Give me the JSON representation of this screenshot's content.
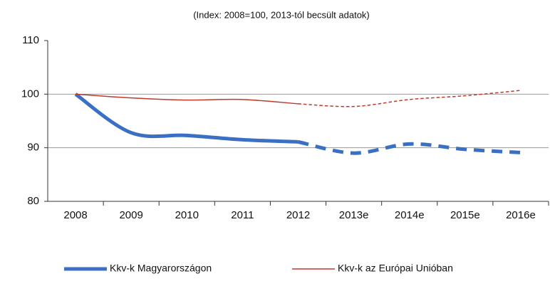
{
  "chart_data": {
    "type": "line",
    "subtitle": "(Index: 2008=100, 2013-tól becsült adatok)",
    "categories": [
      "2008",
      "2009",
      "2010",
      "2011",
      "2012",
      "2013e",
      "2014e",
      "2015e",
      "2016e"
    ],
    "series": [
      {
        "name": "Kkv-k Magyarországon",
        "color": "#3a6fc4",
        "width": 5,
        "values": [
          100,
          92.8,
          92.3,
          91.5,
          91.1,
          89.0,
          90.7,
          89.7,
          89.1
        ]
      },
      {
        "name": "Kkv-k az Európai Unióban",
        "color": "#c0392b",
        "width": 1.5,
        "values": [
          100,
          99.3,
          98.9,
          99.0,
          98.2,
          97.7,
          99.0,
          99.7,
          100.7
        ]
      }
    ],
    "dashed_from_index": 4,
    "ylim": [
      80,
      110
    ],
    "yticks": [
      80,
      90,
      100,
      110
    ],
    "grid": true,
    "legend": "bottom"
  }
}
